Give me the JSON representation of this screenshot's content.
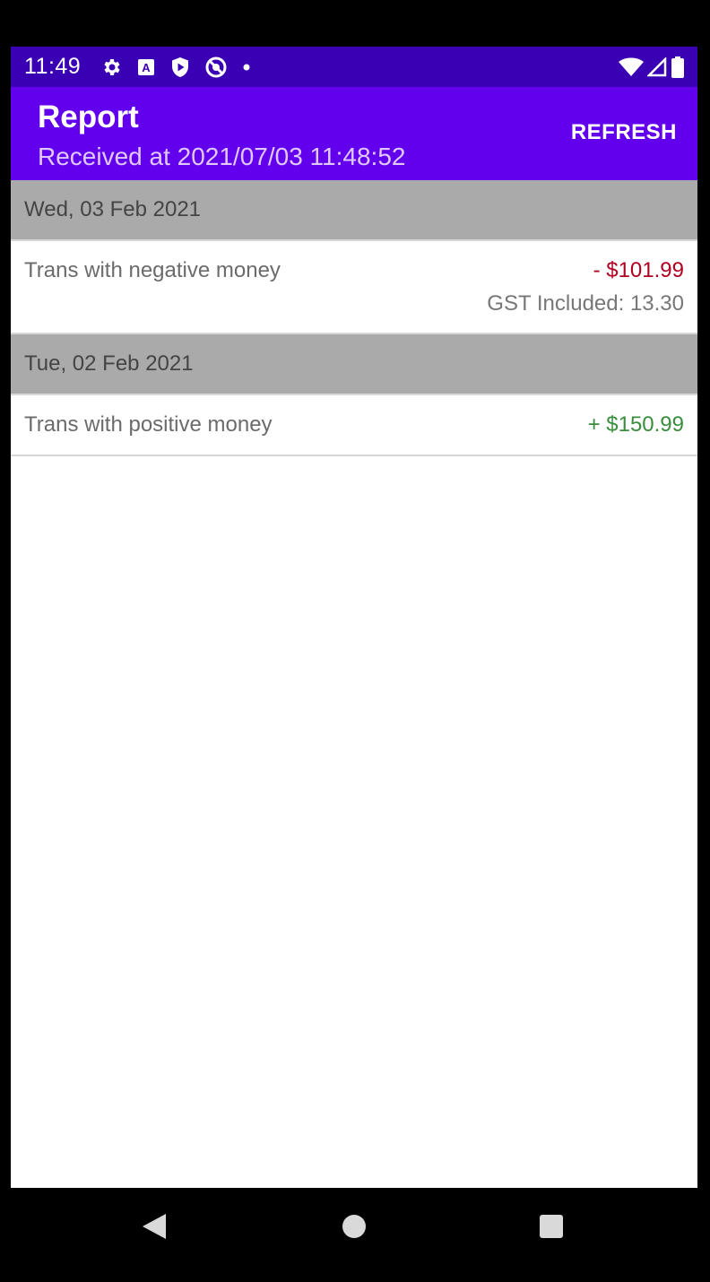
{
  "status": {
    "time": "11:49",
    "left_icons": [
      "settings-icon",
      "a-box-icon",
      "shield-play-icon",
      "no-location-icon",
      "dot-icon"
    ],
    "right_icons": [
      "wifi-icon",
      "signal-icon",
      "battery-icon"
    ]
  },
  "appbar": {
    "title": "Report",
    "subtitle": "Received at 2021/07/03 11:48:52",
    "refresh_label": "REFRESH",
    "color": "#6200ee"
  },
  "sections": [
    {
      "date": "Wed, 03 Feb 2021",
      "items": [
        {
          "label": "Trans with negative money",
          "amount": "- $101.99",
          "gst": "GST Included: 13.30",
          "color": "#b00020"
        }
      ]
    },
    {
      "date": "Tue, 02 Feb 2021",
      "items": [
        {
          "label": "Trans with positive money",
          "amount": "+ $150.99",
          "color": "#388e3c"
        }
      ]
    }
  ],
  "navbar": {
    "buttons": [
      "back-icon",
      "home-icon",
      "recents-icon"
    ]
  }
}
